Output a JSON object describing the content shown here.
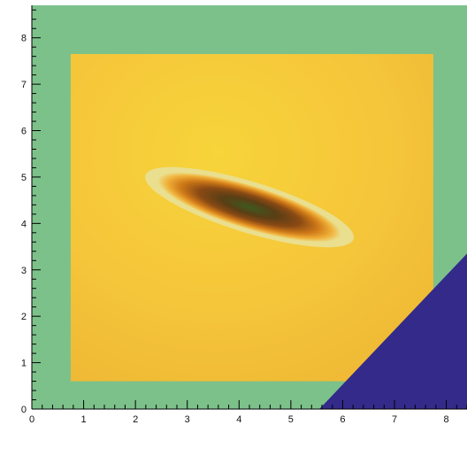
{
  "chart_data": {
    "type": "heatmap",
    "title": "",
    "xlabel": "",
    "ylabel": "",
    "xlim": [
      0,
      8.4
    ],
    "ylim": [
      0,
      8.7
    ],
    "x_ticks": [
      "0",
      "1",
      "2",
      "3",
      "4",
      "5",
      "6",
      "7",
      "8"
    ],
    "y_ticks": [
      "0",
      "1",
      "2",
      "3",
      "4",
      "5",
      "6",
      "7",
      "8"
    ],
    "colors": {
      "background": "#7cc18a",
      "surface_low": "#f7c936",
      "surface_high": "#f0e11a",
      "halo": "#eadf8e",
      "peak_inner": "#3d5a1f",
      "peak_mid": "#6a3a12",
      "corner_region": "#332a8a"
    },
    "surface_region_bounds": {
      "x": [
        0.75,
        7.75
      ],
      "y": [
        0.6,
        7.65
      ]
    },
    "feature": {
      "shape": "ellipse",
      "center": [
        4.2,
        4.35
      ],
      "semi_axes": [
        2.1,
        0.55
      ],
      "rotation_deg": -17,
      "description_value": "peak"
    },
    "corner_region": {
      "points": [
        [
          5.55,
          0
        ],
        [
          8.4,
          0
        ],
        [
          8.4,
          3.35
        ]
      ]
    }
  }
}
